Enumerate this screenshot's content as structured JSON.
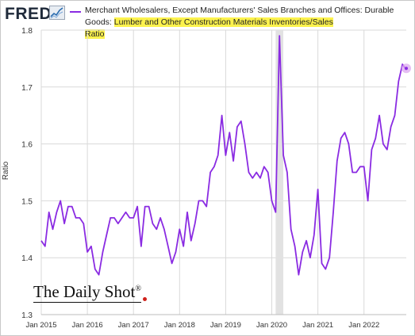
{
  "header": {
    "logo_text": "FRED",
    "logo_icon": "line-chart-icon",
    "title_plain": "Merchant Wholesalers, Except Manufacturers' Sales Branches and Offices: Durable Goods: ",
    "title_highlight_1": "Lumber and Other Construction Materials Inventories/Sales",
    "title_highlight_2": "Ratio"
  },
  "watermark": {
    "text": "The Daily Shot",
    "mark": "®"
  },
  "colors": {
    "line": "#8a2be2",
    "highlight": "#fcf24d",
    "recession_band": "#e2e2e2",
    "grid": "#d9d9d9",
    "last_point_halo": "#dca8ef"
  },
  "chart_data": {
    "type": "line",
    "title": "Merchant Wholesalers, Except Manufacturers' Sales Branches and Offices: Durable Goods: Lumber and Other Construction Materials Inventories/Sales Ratio",
    "xlabel": "",
    "ylabel": "Ratio",
    "ylim": [
      1.3,
      1.8
    ],
    "yticks": [
      1.3,
      1.4,
      1.5,
      1.6,
      1.7,
      1.8
    ],
    "ytick_labels": [
      "1.3",
      "1.4",
      "1.5",
      "1.6",
      "1.7",
      "1.8"
    ],
    "xlim": [
      "2015-01",
      "2022-12"
    ],
    "xtick_labels": [
      "Jan 2015",
      "Jan 2016",
      "Jan 2017",
      "Jan 2018",
      "Jan 2019",
      "Jan 2020",
      "Jan 2021",
      "Jan 2022"
    ],
    "xtick_dates": [
      "2015-01",
      "2016-01",
      "2017-01",
      "2018-01",
      "2019-01",
      "2020-01",
      "2021-01",
      "2022-01"
    ],
    "grid": true,
    "recession_shading": [
      {
        "start": "2020-02",
        "end": "2020-04"
      }
    ],
    "series": [
      {
        "start": "2015-01",
        "frequency": "monthly",
        "values": [
          1.43,
          1.42,
          1.48,
          1.45,
          1.48,
          1.5,
          1.46,
          1.49,
          1.49,
          1.47,
          1.47,
          1.46,
          1.41,
          1.42,
          1.38,
          1.37,
          1.41,
          1.44,
          1.47,
          1.47,
          1.46,
          1.47,
          1.48,
          1.47,
          1.47,
          1.49,
          1.42,
          1.49,
          1.49,
          1.46,
          1.45,
          1.47,
          1.45,
          1.42,
          1.39,
          1.41,
          1.45,
          1.42,
          1.48,
          1.43,
          1.46,
          1.5,
          1.5,
          1.49,
          1.55,
          1.56,
          1.58,
          1.65,
          1.58,
          1.62,
          1.57,
          1.63,
          1.64,
          1.6,
          1.55,
          1.54,
          1.55,
          1.54,
          1.56,
          1.55,
          1.5,
          1.48,
          1.79,
          1.58,
          1.55,
          1.45,
          1.42,
          1.37,
          1.41,
          1.43,
          1.4,
          1.44,
          1.52,
          1.39,
          1.38,
          1.4,
          1.48,
          1.57,
          1.61,
          1.62,
          1.6,
          1.55,
          1.55,
          1.56,
          1.56,
          1.5,
          1.59,
          1.61,
          1.65,
          1.6,
          1.59,
          1.63,
          1.65,
          1.71,
          1.74,
          1.73
        ]
      }
    ]
  }
}
